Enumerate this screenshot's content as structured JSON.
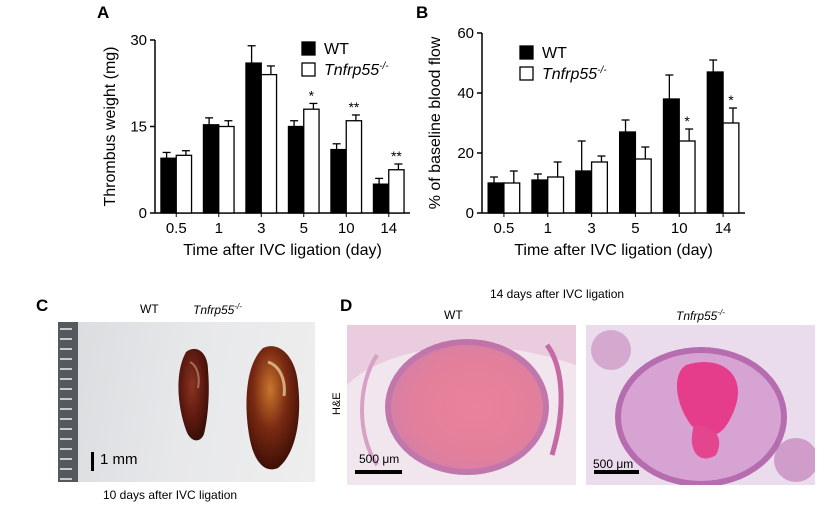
{
  "panels": {
    "a_letter": "A",
    "b_letter": "B",
    "c_letter": "C",
    "d_letter": "D"
  },
  "chart_data": [
    {
      "type": "bar",
      "panel": "A",
      "categories": [
        "0.5",
        "1",
        "3",
        "5",
        "10",
        "14"
      ],
      "xlabel": "Time after IVC ligation (day)",
      "ylabel": "Thrombus weight (mg)",
      "ylim": [
        0,
        30
      ],
      "yticks": [
        0,
        15,
        30
      ],
      "legend_position": "top-right",
      "series": [
        {
          "name": "WT",
          "fill": "filled",
          "values": [
            9.5,
            15.3,
            26.0,
            15.0,
            11.0,
            5.0
          ],
          "errors": [
            1.0,
            1.2,
            3.0,
            1.0,
            1.0,
            1.0
          ]
        },
        {
          "name": "Tnfrp55",
          "name_suffix": "-/-",
          "fill": "open",
          "values": [
            10.0,
            15.0,
            24.0,
            18.0,
            16.0,
            7.5
          ],
          "errors": [
            0.8,
            1.0,
            1.5,
            1.0,
            1.0,
            1.0
          ]
        }
      ],
      "annotations": [
        {
          "category": "5",
          "text": "*"
        },
        {
          "category": "10",
          "text": "**"
        },
        {
          "category": "14",
          "text": "**"
        }
      ]
    },
    {
      "type": "bar",
      "panel": "B",
      "categories": [
        "0.5",
        "1",
        "3",
        "5",
        "10",
        "14"
      ],
      "xlabel": "Time after IVC ligation (day)",
      "ylabel": "% of baseline blood flow",
      "ylim": [
        0,
        60
      ],
      "yticks": [
        0,
        20,
        40,
        60
      ],
      "legend_position": "top-left",
      "series": [
        {
          "name": "WT",
          "fill": "filled",
          "values": [
            10,
            11,
            14,
            27,
            38,
            47
          ],
          "errors": [
            2,
            2,
            10,
            4,
            8,
            4
          ]
        },
        {
          "name": "Tnfrp55",
          "name_suffix": "-/-",
          "fill": "open",
          "values": [
            10,
            12,
            17,
            18,
            24,
            30
          ],
          "errors": [
            4,
            5,
            2,
            4,
            4,
            5
          ]
        }
      ],
      "annotations": [
        {
          "category": "10",
          "text": "*"
        },
        {
          "category": "14",
          "text": "*"
        }
      ]
    }
  ],
  "photo_c": {
    "label_wt": "WT",
    "label_ko": "Tnfrp55",
    "label_ko_suffix": "-/-",
    "scale_bar": "1 mm",
    "caption": "10 days after IVC ligation"
  },
  "histology_d": {
    "title": "14 days after IVC ligation",
    "label_wt": "WT",
    "label_ko": "Tnfrp55",
    "label_ko_suffix": "-/-",
    "stain_label": "H&E",
    "scale_left": "500 μm",
    "scale_right": "500 μm"
  }
}
